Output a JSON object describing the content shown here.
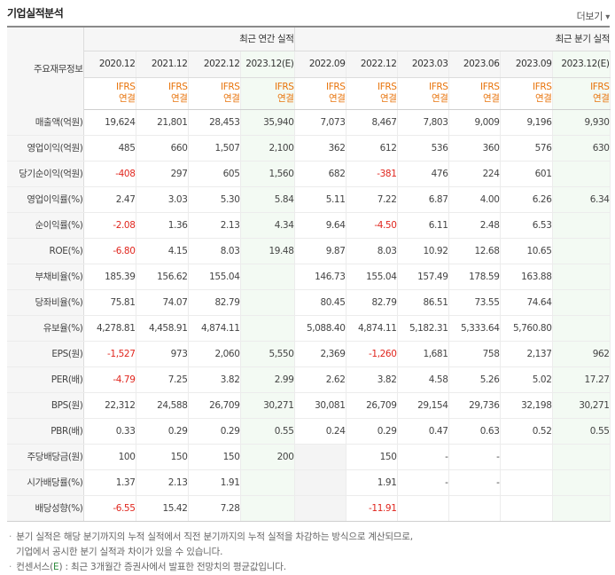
{
  "header": {
    "title": "기업실적분석",
    "more_label": "더보기",
    "more_arrow": "▾"
  },
  "table": {
    "corner_label": "주요재무정보",
    "annual_group": "최근 연간 실적",
    "quarter_group": "최근 분기 실적",
    "annual_periods": [
      "2020.12",
      "2021.12",
      "2022.12",
      "2023.12(E)"
    ],
    "quarter_periods": [
      "2022.09",
      "2022.12",
      "2023.03",
      "2023.06",
      "2023.09",
      "2023.12(E)"
    ],
    "ifrs_top": "IFRS",
    "ifrs_bottom": "연결",
    "rows": [
      {
        "label": "매출액(억원)",
        "values": [
          "19,624",
          "21,801",
          "28,453",
          "35,940",
          "7,073",
          "8,467",
          "7,803",
          "9,009",
          "9,196",
          "9,930"
        ]
      },
      {
        "label": "영업이익(억원)",
        "values": [
          "485",
          "660",
          "1,507",
          "2,100",
          "362",
          "612",
          "536",
          "360",
          "576",
          "630"
        ]
      },
      {
        "label": "당기순이익(억원)",
        "values": [
          "-408",
          "297",
          "605",
          "1,560",
          "682",
          "-381",
          "476",
          "224",
          "601",
          ""
        ]
      },
      {
        "label": "영업이익률(%)",
        "values": [
          "2.47",
          "3.03",
          "5.30",
          "5.84",
          "5.11",
          "7.22",
          "6.87",
          "4.00",
          "6.26",
          "6.34"
        ]
      },
      {
        "label": "순이익률(%)",
        "values": [
          "-2.08",
          "1.36",
          "2.13",
          "4.34",
          "9.64",
          "-4.50",
          "6.11",
          "2.48",
          "6.53",
          ""
        ]
      },
      {
        "label": "ROE(%)",
        "values": [
          "-6.80",
          "4.15",
          "8.03",
          "19.48",
          "9.87",
          "8.03",
          "10.92",
          "12.68",
          "10.65",
          ""
        ]
      },
      {
        "label": "부채비율(%)",
        "values": [
          "185.39",
          "156.62",
          "155.04",
          "",
          "146.73",
          "155.04",
          "157.49",
          "178.59",
          "163.88",
          ""
        ]
      },
      {
        "label": "당좌비율(%)",
        "values": [
          "75.81",
          "74.07",
          "82.79",
          "",
          "80.45",
          "82.79",
          "86.51",
          "73.55",
          "74.64",
          ""
        ]
      },
      {
        "label": "유보율(%)",
        "values": [
          "4,278.81",
          "4,458.91",
          "4,874.11",
          "",
          "5,088.40",
          "4,874.11",
          "5,182.31",
          "5,333.64",
          "5,760.80",
          ""
        ]
      },
      {
        "label": "EPS(원)",
        "values": [
          "-1,527",
          "973",
          "2,060",
          "5,550",
          "2,369",
          "-1,260",
          "1,681",
          "758",
          "2,137",
          "962"
        ]
      },
      {
        "label": "PER(배)",
        "values": [
          "-4.79",
          "7.25",
          "3.82",
          "2.99",
          "2.62",
          "3.82",
          "4.58",
          "5.26",
          "5.02",
          "17.27"
        ]
      },
      {
        "label": "BPS(원)",
        "values": [
          "22,312",
          "24,588",
          "26,709",
          "30,271",
          "30,081",
          "26,709",
          "29,154",
          "29,736",
          "32,198",
          "30,271"
        ]
      },
      {
        "label": "PBR(배)",
        "values": [
          "0.33",
          "0.29",
          "0.29",
          "0.55",
          "0.24",
          "0.29",
          "0.47",
          "0.63",
          "0.52",
          "0.55"
        ]
      },
      {
        "label": "주당배당금(원)",
        "values": [
          "100",
          "150",
          "150",
          "200",
          "",
          "150",
          "-",
          "-",
          "",
          ""
        ]
      },
      {
        "label": "시가배당률(%)",
        "values": [
          "1.37",
          "2.13",
          "1.91",
          "",
          "",
          "1.91",
          "-",
          "-",
          "",
          ""
        ]
      },
      {
        "label": "배당성향(%)",
        "values": [
          "-6.55",
          "15.42",
          "7.28",
          "",
          "",
          "-11.91",
          "",
          "",
          "",
          ""
        ]
      }
    ]
  },
  "notes": {
    "line1": "분기 실적은 해당 분기까지의 누적 실적에서 직전 분기까지의 누적 실적을 차감하는 방식으로 계산되므로,",
    "line2": "기업에서 공시한 분기 실적과 차이가 있을 수 있습니다.",
    "line3_prefix": "컨센서스(",
    "line3_e": "E",
    "line3_suffix": ") : 최근 3개월간 증권사에서 발표한 전망치의 평균값입니다.",
    "bullet": "·"
  },
  "colors": {
    "negative": "#e0261e",
    "ifrs": "#e8740c",
    "estimate_bg": "#f3faf3",
    "header_bg": "#f6f6f6",
    "consensus_e": "#2d8a3c"
  }
}
